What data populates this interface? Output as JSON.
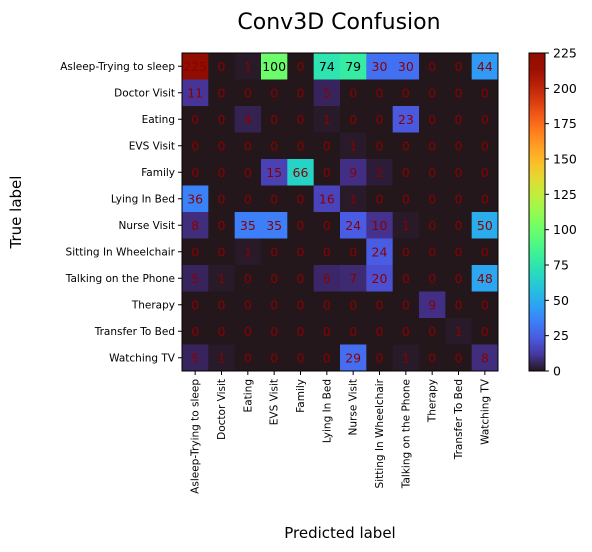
{
  "chart_data": {
    "type": "heatmap",
    "title": "Conv3D Confusion",
    "xlabel": "Predicted label",
    "ylabel": "True label",
    "labels": [
      "Asleep-Trying to sleep",
      "Doctor Visit",
      "Eating",
      "EVS Visit",
      "Family",
      "Lying In Bed",
      "Nurse Visit",
      "Sitting In Wheelchair",
      "Talking on the Phone",
      "Therapy",
      "Transfer To Bed",
      "Watching TV"
    ],
    "matrix": [
      [
        225,
        0,
        1,
        100,
        0,
        74,
        79,
        30,
        30,
        0,
        0,
        44
      ],
      [
        11,
        0,
        0,
        0,
        0,
        5,
        0,
        0,
        0,
        0,
        0,
        0
      ],
      [
        0,
        0,
        4,
        0,
        0,
        1,
        0,
        0,
        23,
        0,
        0,
        0
      ],
      [
        0,
        0,
        0,
        0,
        0,
        0,
        1,
        0,
        0,
        0,
        0,
        0
      ],
      [
        0,
        0,
        0,
        15,
        66,
        0,
        9,
        2,
        0,
        0,
        0,
        0
      ],
      [
        36,
        0,
        0,
        0,
        0,
        16,
        1,
        0,
        0,
        0,
        0,
        0
      ],
      [
        8,
        0,
        35,
        35,
        0,
        0,
        24,
        10,
        1,
        0,
        0,
        50
      ],
      [
        0,
        0,
        1,
        0,
        0,
        0,
        0,
        24,
        0,
        0,
        0,
        0
      ],
      [
        5,
        1,
        0,
        0,
        0,
        6,
        7,
        20,
        0,
        0,
        0,
        48
      ],
      [
        0,
        0,
        0,
        0,
        0,
        0,
        0,
        0,
        0,
        9,
        0,
        0
      ],
      [
        0,
        0,
        0,
        0,
        0,
        0,
        0,
        0,
        0,
        0,
        1,
        0
      ],
      [
        5,
        1,
        0,
        0,
        0,
        0,
        29,
        0,
        1,
        0,
        0,
        8
      ]
    ],
    "colormap": "turbo",
    "vmin": 0,
    "vmax": 225,
    "colorbar_ticks": [
      0,
      25,
      50,
      75,
      100,
      125,
      150,
      175,
      200,
      225
    ],
    "colors": {
      "label_text_light": "#8b0000",
      "label_text_dark": "#000000"
    }
  }
}
